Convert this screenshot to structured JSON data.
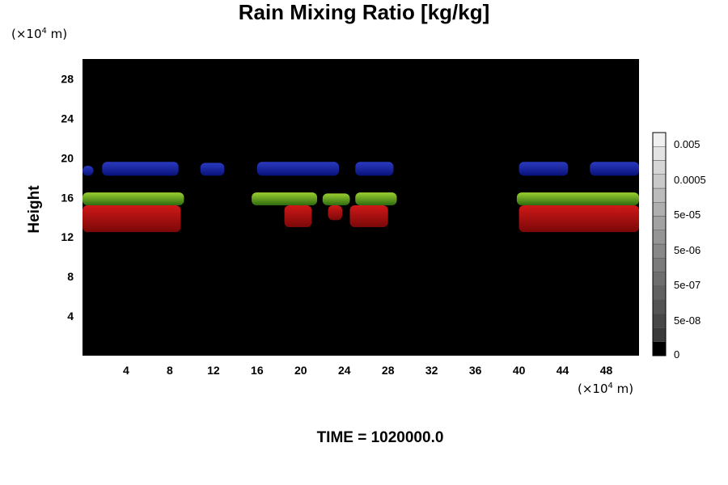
{
  "chart_data": {
    "type": "heatmap",
    "title": "Rain Mixing Ratio [kg/kg]",
    "xlabel": "",
    "ylabel": "Height",
    "x_unit_prefix": "(×10",
    "x_unit_exp": "4",
    "x_unit_suffix": " m)",
    "y_unit_prefix": "(×10",
    "y_unit_exp": "4",
    "y_unit_suffix": " m)",
    "xlim": [
      0,
      51
    ],
    "ylim": [
      0,
      30
    ],
    "x_ticks": [
      "4",
      "8",
      "12",
      "16",
      "20",
      "24",
      "28",
      "32",
      "36",
      "40",
      "44",
      "48"
    ],
    "x_tick_values": [
      4,
      8,
      12,
      16,
      20,
      24,
      28,
      32,
      36,
      40,
      44,
      48
    ],
    "y_ticks": [
      "4",
      "8",
      "12",
      "16",
      "20",
      "24",
      "28"
    ],
    "y_tick_values": [
      4,
      8,
      12,
      16,
      20,
      24,
      28
    ],
    "colorbar_labels": [
      "0.005",
      "0.0005",
      "5e-05",
      "5e-06",
      "5e-07",
      "5e-08",
      "0"
    ],
    "colors": {
      "background": "#000000",
      "blue_band": "#0a1a8c",
      "green_band": "#5aa020",
      "red_band": "#b01010"
    },
    "regions": [
      {
        "band": "blue",
        "x": [
          0,
          1.0
        ],
        "y": [
          18.2,
          19.2
        ]
      },
      {
        "band": "blue",
        "x": [
          1.8,
          8.8
        ],
        "y": [
          18.2,
          19.6
        ]
      },
      {
        "band": "blue",
        "x": [
          10.8,
          13.0
        ],
        "y": [
          18.2,
          19.5
        ]
      },
      {
        "band": "blue",
        "x": [
          16.0,
          23.5
        ],
        "y": [
          18.2,
          19.6
        ]
      },
      {
        "band": "blue",
        "x": [
          25.0,
          28.5
        ],
        "y": [
          18.2,
          19.6
        ]
      },
      {
        "band": "blue",
        "x": [
          40.0,
          44.5
        ],
        "y": [
          18.2,
          19.6
        ]
      },
      {
        "band": "blue",
        "x": [
          46.5,
          51
        ],
        "y": [
          18.2,
          19.6
        ]
      },
      {
        "band": "green",
        "x": [
          0,
          9.3
        ],
        "y": [
          15.2,
          16.5
        ]
      },
      {
        "band": "green",
        "x": [
          15.5,
          21.5
        ],
        "y": [
          15.2,
          16.5
        ]
      },
      {
        "band": "green",
        "x": [
          22.0,
          24.5
        ],
        "y": [
          15.2,
          16.4
        ]
      },
      {
        "band": "green",
        "x": [
          25.0,
          28.8
        ],
        "y": [
          15.2,
          16.5
        ]
      },
      {
        "band": "green",
        "x": [
          39.8,
          51
        ],
        "y": [
          15.2,
          16.5
        ]
      },
      {
        "band": "red",
        "x": [
          0,
          9.0
        ],
        "y": [
          12.5,
          15.2
        ]
      },
      {
        "band": "red",
        "x": [
          18.5,
          21.0
        ],
        "y": [
          13.0,
          15.2
        ]
      },
      {
        "band": "red",
        "x": [
          22.5,
          23.8
        ],
        "y": [
          13.7,
          15.2
        ]
      },
      {
        "band": "red",
        "x": [
          24.5,
          28.0
        ],
        "y": [
          13.0,
          15.2
        ]
      },
      {
        "band": "red",
        "x": [
          40.0,
          51
        ],
        "y": [
          12.5,
          15.2
        ]
      }
    ],
    "grid": false
  },
  "footer": {
    "time_label": "TIME = 1020000.0"
  }
}
